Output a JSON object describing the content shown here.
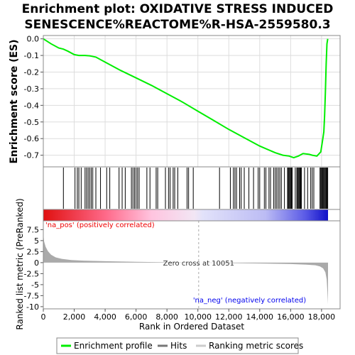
{
  "title_lines": [
    "Enrichment plot: OXIDATIVE STRESS INDUCED",
    "SENESCENCE%REACTOME%R-HSA-2559580.3"
  ],
  "chart_data": {
    "type": "line",
    "es_ylabel": "Enrichment score (ES)",
    "metric_ylabel": "Ranked list metric (PreRanked)",
    "xlabel": "Rank in Ordered Dataset",
    "x_range": [
      0,
      19200
    ],
    "x_ticks": [
      0,
      2000,
      4000,
      6000,
      8000,
      10000,
      12000,
      14000,
      16000,
      18000
    ],
    "x_tick_labels": [
      "0",
      "2,000",
      "4,000",
      "6,000",
      "8,000",
      "10,000",
      "12,000",
      "14,000",
      "16,000",
      "18,000"
    ],
    "es_range": [
      -0.77,
      0.02
    ],
    "es_ticks": [
      0.0,
      -0.1,
      -0.2,
      -0.3,
      -0.4,
      -0.5,
      -0.6,
      -0.7
    ],
    "es_tick_labels": [
      "0.0",
      "-0.1",
      "-0.2",
      "-0.3",
      "-0.4",
      "-0.5",
      "-0.6",
      "-0.7"
    ],
    "metric_range": [
      -10.5,
      9.5
    ],
    "metric_ticks": [
      7.5,
      5,
      2.5,
      0,
      -2.5,
      -5,
      -7.5,
      -10
    ],
    "metric_tick_labels": [
      "7.5",
      "5",
      "2.5",
      "0",
      "-2.5",
      "-5",
      "-7.5",
      "-10"
    ],
    "es_curve": {
      "name": "Enrichment profile",
      "color": "#00ee00",
      "x": [
        0,
        500,
        1000,
        1300,
        1600,
        2000,
        2300,
        2700,
        3000,
        3400,
        4000,
        5000,
        6000,
        7000,
        8000,
        9000,
        10000,
        11000,
        12000,
        13000,
        14000,
        15000,
        15500,
        15900,
        16200,
        16500,
        16800,
        17200,
        17400,
        17700,
        17950,
        18050,
        18150,
        18200,
        18250,
        18300,
        18350,
        18400
      ],
      "y": [
        0.0,
        -0.03,
        -0.055,
        -0.062,
        -0.075,
        -0.095,
        -0.1,
        -0.1,
        -0.102,
        -0.11,
        -0.14,
        -0.19,
        -0.235,
        -0.28,
        -0.33,
        -0.38,
        -0.435,
        -0.49,
        -0.545,
        -0.595,
        -0.645,
        -0.685,
        -0.7,
        -0.705,
        -0.715,
        -0.705,
        -0.69,
        -0.695,
        -0.7,
        -0.705,
        -0.68,
        -0.62,
        -0.56,
        -0.46,
        -0.32,
        -0.15,
        -0.03,
        0.0
      ]
    },
    "hits": {
      "name": "Hits",
      "x": [
        1300,
        2050,
        2200,
        2300,
        2450,
        2700,
        2800,
        2900,
        3000,
        3100,
        3200,
        3400,
        3700,
        4100,
        4300,
        4900,
        5100,
        5300,
        5700,
        5800,
        5900,
        6000,
        6100,
        6200,
        6700,
        6900,
        7300,
        7400,
        7900,
        8100,
        8200,
        8400,
        8500,
        8700,
        9300,
        9400,
        9700,
        11400,
        12100,
        12300,
        12400,
        12500,
        12700,
        12800,
        13000,
        13300,
        13600,
        13900,
        14000,
        14300,
        14400,
        14600,
        14700,
        14900,
        15000,
        15100,
        15200,
        15300,
        15400,
        15600,
        15800,
        15850,
        15900,
        15950,
        16000,
        16050,
        16100,
        16300,
        16400,
        16450,
        16500,
        16550,
        16600,
        16650,
        16700,
        16900,
        17100,
        17300,
        17400,
        17500,
        17900,
        17950,
        18000,
        18050,
        18100,
        18150,
        18200,
        18250,
        18300,
        18350,
        18400
      ]
    },
    "metric": {
      "name": "Ranking metric scores",
      "x": [
        0,
        50,
        150,
        300,
        500,
        800,
        1200,
        1800,
        2600,
        4000,
        6000,
        8000,
        10051,
        12000,
        14000,
        16000,
        17000,
        17600,
        17900,
        18100,
        18250,
        18330,
        18380,
        18420
      ],
      "y": [
        6.5,
        4.8,
        3.6,
        2.6,
        1.8,
        1.2,
        0.85,
        0.6,
        0.45,
        0.32,
        0.18,
        0.08,
        0.0,
        -0.1,
        -0.2,
        -0.33,
        -0.45,
        -0.6,
        -0.85,
        -1.3,
        -2.2,
        -3.8,
        -6.5,
        -9.5
      ]
    },
    "zero_cross": 10051,
    "zero_cross_label": "Zero cross at 10051",
    "na_pos_label": "'na_pos' (positively correlated)",
    "na_neg_label": "'na_neg' (negatively correlated)",
    "legend": {
      "position": "bottom",
      "items": [
        "Enrichment profile",
        "Hits",
        "Ranking metric scores"
      ]
    },
    "colors": {
      "es_line": "#00ee00",
      "hit_line": "#000000",
      "metric_fill": "#aaaaaa",
      "pos_label": "#ee0000",
      "neg_label": "#0000ee",
      "zero_line": "#aaaaaa"
    }
  }
}
